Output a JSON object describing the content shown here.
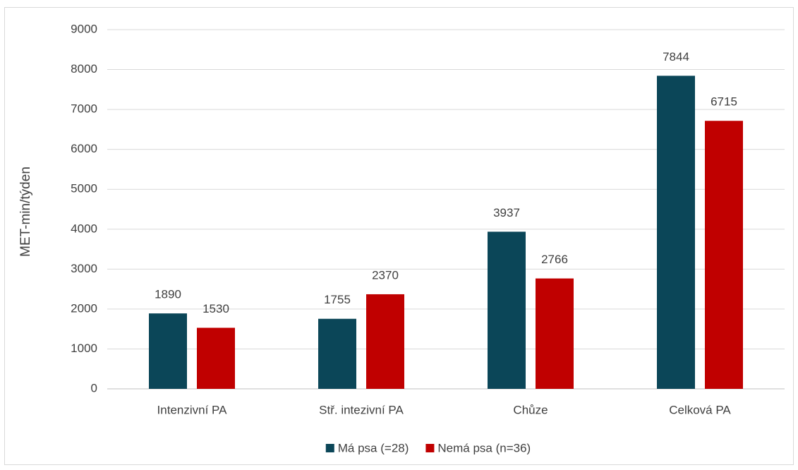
{
  "chart_data": {
    "type": "bar",
    "y_label": "MET-min/týden",
    "categories": [
      "Intenzivní PA",
      "Stř. intezivní PA",
      "Chůze",
      "Celková PA"
    ],
    "series": [
      {
        "name": "Má psa (=28)",
        "color": "#0b4658",
        "values": [
          1890,
          1755,
          3937,
          7844
        ]
      },
      {
        "name": "Nemá psa (n=36)",
        "color": "#c00000",
        "values": [
          1530,
          2370,
          2766,
          6715
        ]
      }
    ],
    "ylim": [
      0,
      9000
    ],
    "yticks": [
      0,
      1000,
      2000,
      3000,
      4000,
      5000,
      6000,
      7000,
      8000,
      9000
    ],
    "grid": true,
    "legend": "bottom"
  }
}
